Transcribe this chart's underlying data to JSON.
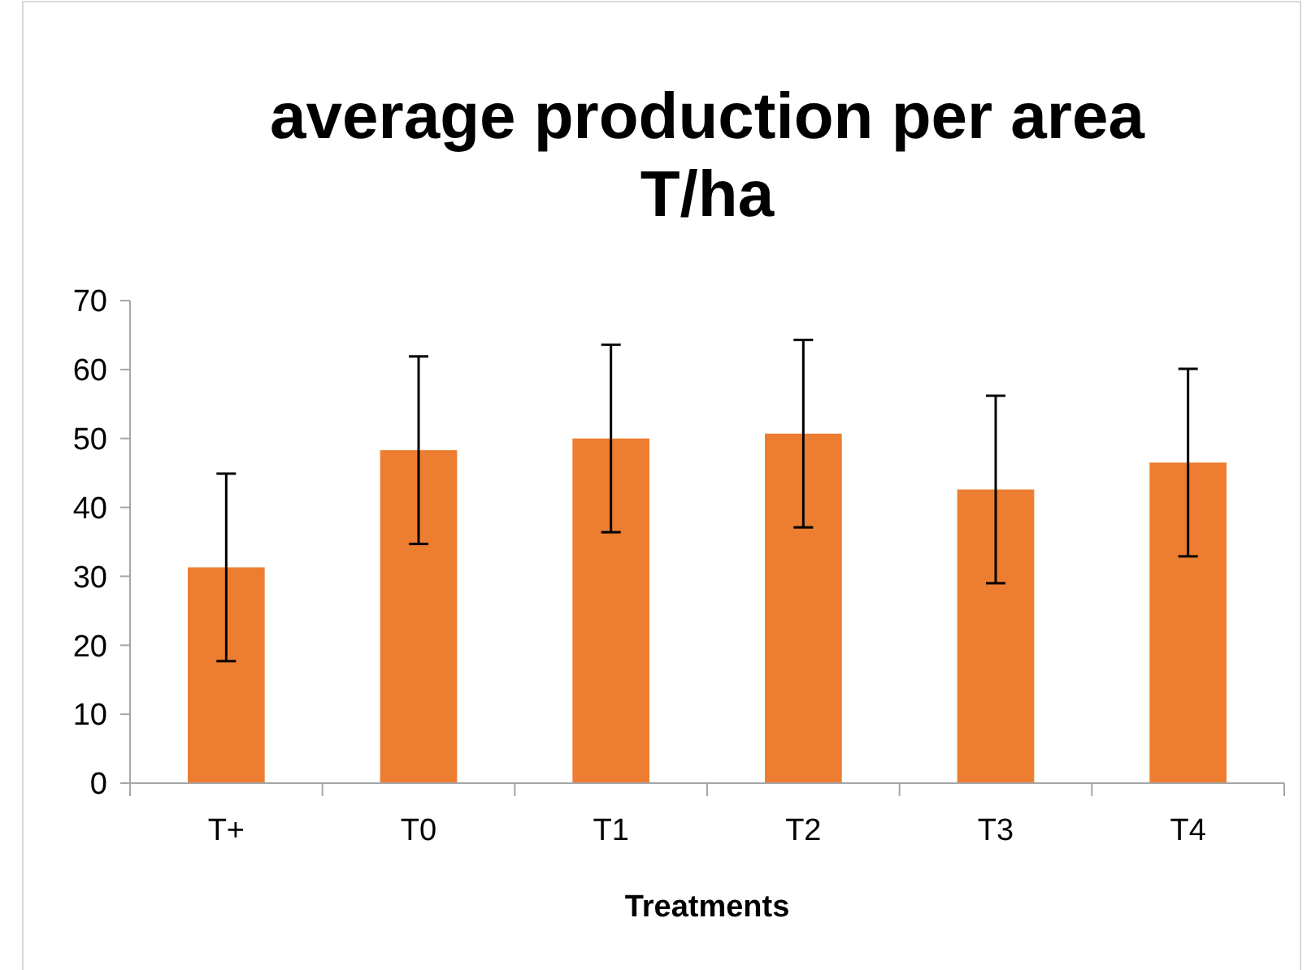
{
  "chart_data": {
    "type": "bar",
    "title": "average production per area\nT/ha",
    "xlabel": "Treatments",
    "categories": [
      "T+",
      "T0",
      "T1",
      "T2",
      "T3",
      "T4"
    ],
    "values": [
      31.3,
      48.3,
      50.0,
      50.7,
      42.6,
      46.5
    ],
    "errors": [
      13.6,
      13.6,
      13.6,
      13.6,
      13.6,
      13.6
    ],
    "color": "#ed7d31",
    "ylim": [
      0,
      70
    ],
    "yticks": [
      0,
      10,
      20,
      30,
      40,
      50,
      60,
      70
    ],
    "grid": false
  }
}
